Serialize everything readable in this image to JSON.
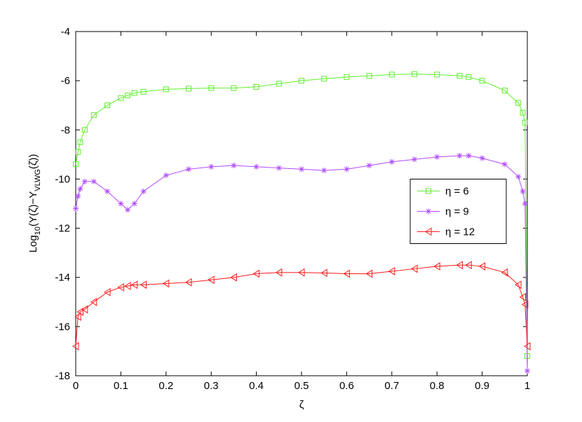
{
  "chart_data": {
    "type": "line",
    "xlabel": "ζ",
    "ylabel": [
      "Log",
      "10",
      "(Y(ζ)−Y",
      "VLWG",
      "(ζ))"
    ],
    "x": [
      0,
      0.005,
      0.01,
      0.02,
      0.04,
      0.07,
      0.1,
      0.115,
      0.13,
      0.15,
      0.2,
      0.25,
      0.3,
      0.35,
      0.4,
      0.45,
      0.5,
      0.55,
      0.6,
      0.65,
      0.7,
      0.75,
      0.8,
      0.85,
      0.87,
      0.9,
      0.95,
      0.98,
      0.99,
      0.995,
      1
    ],
    "series": [
      {
        "name": "η = 6",
        "color": "#5ef02c",
        "marker": "square",
        "values": [
          -9.4,
          -8.9,
          -8.5,
          -8.0,
          -7.4,
          -7.0,
          -6.7,
          -6.6,
          -6.5,
          -6.45,
          -6.35,
          -6.32,
          -6.3,
          -6.3,
          -6.25,
          -6.12,
          -6.0,
          -5.92,
          -5.85,
          -5.8,
          -5.75,
          -5.73,
          -5.75,
          -5.8,
          -5.85,
          -6.0,
          -6.4,
          -6.9,
          -7.3,
          -7.7,
          -17.2
        ]
      },
      {
        "name": "η = 9",
        "color": "#b24cff",
        "marker": "star",
        "values": [
          -11.2,
          -10.7,
          -10.4,
          -10.1,
          -10.1,
          -10.5,
          -11.0,
          -11.25,
          -11.0,
          -10.5,
          -9.85,
          -9.6,
          -9.5,
          -9.45,
          -9.5,
          -9.55,
          -9.6,
          -9.65,
          -9.6,
          -9.45,
          -9.3,
          -9.2,
          -9.1,
          -9.05,
          -9.05,
          -9.15,
          -9.4,
          -9.9,
          -10.5,
          -11.0,
          -17.8
        ]
      },
      {
        "name": "η = 12",
        "color": "#ff1a1a",
        "marker": "triangle-left",
        "values": [
          -16.8,
          -15.6,
          -15.4,
          -15.3,
          -15.0,
          -14.6,
          -14.4,
          -14.35,
          -14.3,
          -14.3,
          -14.25,
          -14.2,
          -14.1,
          -14.0,
          -13.85,
          -13.8,
          -13.8,
          -13.82,
          -13.85,
          -13.85,
          -13.75,
          -13.65,
          -13.55,
          -13.5,
          -13.5,
          -13.55,
          -13.8,
          -14.3,
          -14.8,
          -15.1,
          -16.8
        ]
      }
    ],
    "xlim": [
      0,
      1
    ],
    "xticks": [
      0,
      0.1,
      0.2,
      0.3,
      0.4,
      0.5,
      0.6,
      0.7,
      0.8,
      0.9,
      1
    ],
    "ylim": [
      -18,
      -4
    ],
    "yticks": [
      -18,
      -16,
      -14,
      -12,
      -10,
      -8,
      -6,
      -4
    ],
    "grid": false,
    "legend": "east"
  }
}
